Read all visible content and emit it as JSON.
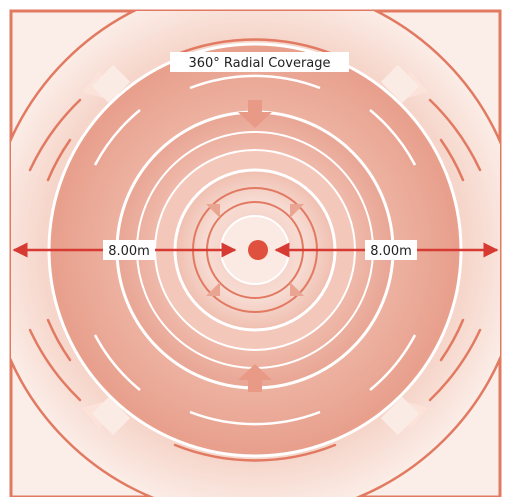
{
  "diagram": {
    "title": "360° Radial Coverage",
    "left_distance": "8.00m",
    "right_distance": "8.00m"
  },
  "colors": {
    "border": "#e27a62",
    "rings": "#e27a62",
    "fill_light": "#fbeee9",
    "fill_dark": "#efb3a2",
    "arrow": "#d63a32",
    "center_dot": "#e0503e",
    "label_bg": "#ffffff"
  }
}
